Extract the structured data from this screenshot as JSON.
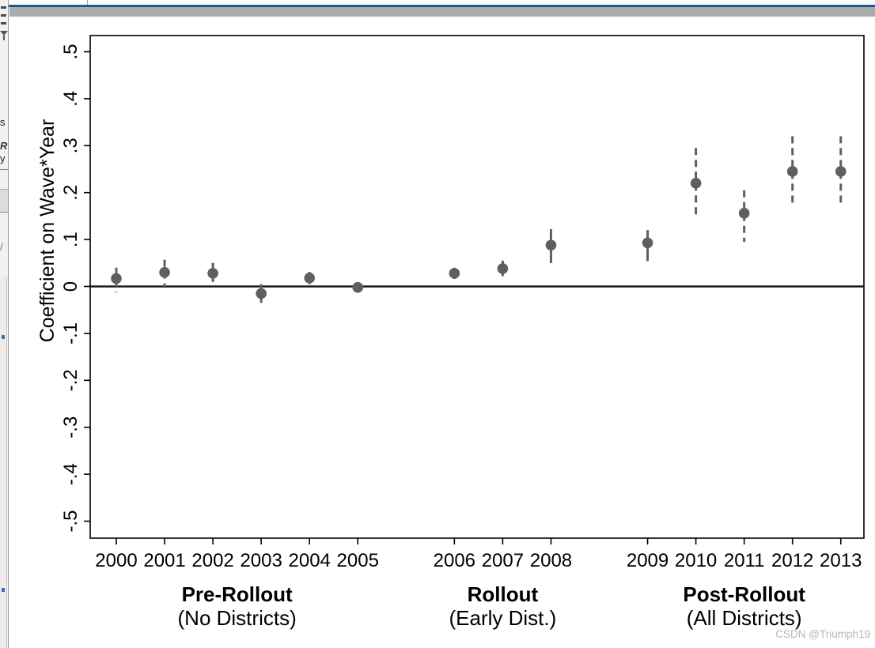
{
  "window": {
    "sidebar_fragments": [
      "s",
      "R",
      "y",
      "/"
    ],
    "top_accent_color": "#1c5a8e",
    "top_bar_color": "#ababab",
    "sidebar_mark_color": "#3f6fae"
  },
  "watermark": "CSDN @Triumph19",
  "chart_data": {
    "type": "scatter",
    "title": "",
    "xlabel": "",
    "ylabel": "Coefficient on Wave*Year",
    "ylim": [
      -0.5,
      0.5
    ],
    "grid": false,
    "zero_line": true,
    "marker_color": "#5f5f5f",
    "axis_color": "#000000",
    "yticks": [
      {
        "v": 0.5,
        "label": ".5"
      },
      {
        "v": 0.4,
        "label": ".4"
      },
      {
        "v": 0.3,
        "label": ".3"
      },
      {
        "v": 0.2,
        "label": ".2"
      },
      {
        "v": 0.1,
        "label": ".1"
      },
      {
        "v": 0.0,
        "label": "0"
      },
      {
        "v": -0.1,
        "label": "-.1"
      },
      {
        "v": -0.2,
        "label": "-.2"
      },
      {
        "v": -0.3,
        "label": "-.3"
      },
      {
        "v": -0.4,
        "label": "-.4"
      },
      {
        "v": -0.5,
        "label": "-.5"
      }
    ],
    "groups": [
      {
        "title": "Pre-Rollout",
        "subtitle": "(No Districts)",
        "years": [
          "2000",
          "2001",
          "2002",
          "2003",
          "2004",
          "2005"
        ],
        "center_slot": 2.5
      },
      {
        "title": "Rollout",
        "subtitle": "(Early Dist.)",
        "years": [
          "2006",
          "2007",
          "2008"
        ],
        "center_slot": 8
      },
      {
        "title": "Post-Rollout",
        "subtitle": "(All Districts)",
        "years": [
          "2009",
          "2010",
          "2011",
          "2012",
          "2013"
        ],
        "center_slot": 13
      }
    ],
    "points": [
      {
        "year": "2000",
        "slot": 0,
        "value": 0.017,
        "ci": [
          -0.012,
          0.04
        ],
        "whisker": "dashed"
      },
      {
        "year": "2001",
        "slot": 1,
        "value": 0.03,
        "ci": [
          0.0,
          0.057
        ],
        "whisker": "dashed"
      },
      {
        "year": "2002",
        "slot": 2,
        "value": 0.028,
        "ci": [
          0.004,
          0.05
        ],
        "whisker": "dashed"
      },
      {
        "year": "2003",
        "slot": 3,
        "value": -0.015,
        "ci": [
          -0.035,
          0.005
        ],
        "whisker": "solid"
      },
      {
        "year": "2004",
        "slot": 4,
        "value": 0.018,
        "ci": [
          0.005,
          0.031
        ],
        "whisker": "solid"
      },
      {
        "year": "2005",
        "slot": 5,
        "value": -0.002,
        "ci": [
          -0.012,
          0.008
        ],
        "whisker": "solid"
      },
      {
        "year": "2006",
        "slot": 7,
        "value": 0.028,
        "ci": [
          0.016,
          0.04
        ],
        "whisker": "solid"
      },
      {
        "year": "2007",
        "slot": 8,
        "value": 0.038,
        "ci": [
          0.022,
          0.055
        ],
        "whisker": "solid"
      },
      {
        "year": "2008",
        "slot": 9,
        "value": 0.088,
        "ci": [
          0.05,
          0.122
        ],
        "whisker": "solid"
      },
      {
        "year": "2009",
        "slot": 11,
        "value": 0.093,
        "ci": [
          0.054,
          0.12
        ],
        "whisker": "solid"
      },
      {
        "year": "2010",
        "slot": 12,
        "value": 0.22,
        "ci": [
          0.145,
          0.295
        ],
        "whisker": "dashed"
      },
      {
        "year": "2011",
        "slot": 13,
        "value": 0.156,
        "ci": [
          0.095,
          0.205
        ],
        "whisker": "dashed"
      },
      {
        "year": "2012",
        "slot": 14,
        "value": 0.245,
        "ci": [
          0.17,
          0.32
        ],
        "whisker": "dashed"
      },
      {
        "year": "2013",
        "slot": 15,
        "value": 0.245,
        "ci": [
          0.17,
          0.32
        ],
        "whisker": "dashed"
      }
    ]
  }
}
